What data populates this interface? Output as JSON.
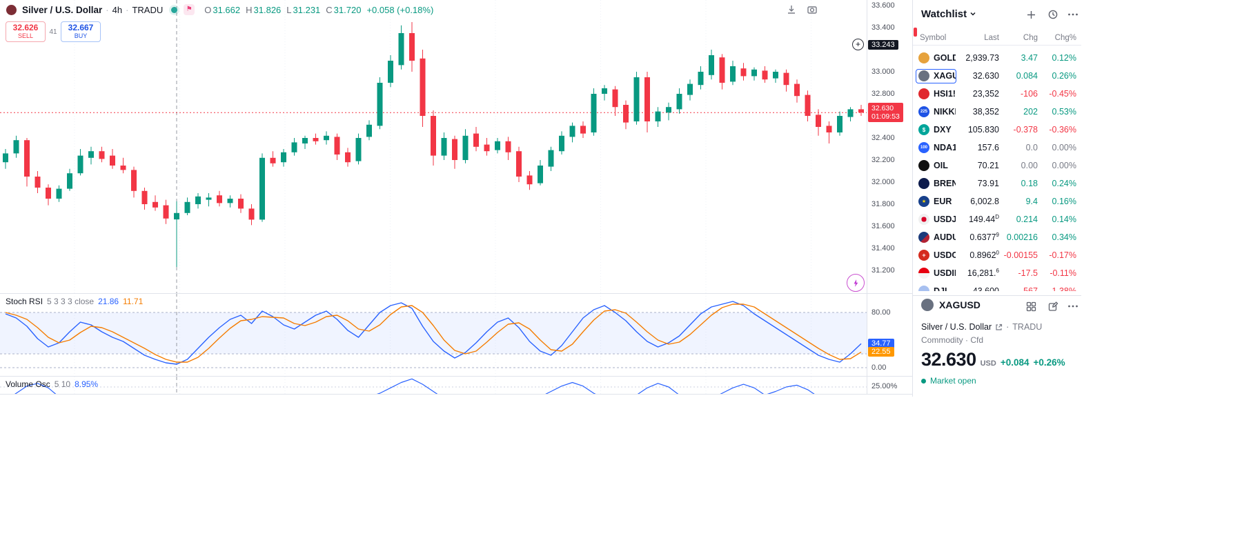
{
  "colors": {
    "up": "#089981",
    "down": "#f23645",
    "blue": "#2962ff",
    "orange": "#f57c00",
    "black_badge": "#131722",
    "red_badge": "#f23645",
    "orange_badge": "#ff9800"
  },
  "header": {
    "symbol": "Silver / U.S. Dollar",
    "sep": "·",
    "interval": "4h",
    "exchange": "TRADU",
    "ohlc": {
      "o_label": "O",
      "o": "31.662",
      "h_label": "H",
      "h": "31.826",
      "l_label": "L",
      "l": "31.231",
      "c_label": "C",
      "c": "31.720"
    },
    "change": "+0.058 (+0.18%)"
  },
  "trade": {
    "sell_price": "32.626",
    "sell_label": "SELL",
    "spread": "41",
    "buy_price": "32.667",
    "buy_label": "BUY"
  },
  "chart_data": [
    {
      "type": "candlestick",
      "title": "Silver / U.S. Dollar",
      "interval": "4h",
      "exchange": "TRADU",
      "ylim": [
        31.1,
        33.65
      ],
      "y_ticks": [
        "33.600",
        "33.400",
        "33.000",
        "32.800",
        "32.400",
        "32.200",
        "32.000",
        "31.800",
        "31.600",
        "31.400",
        "31.200"
      ],
      "alert_price": "33.243",
      "last_price": "32.630",
      "countdown": "01:09:53",
      "crosshair_index": 16,
      "candles": [
        [
          32.18,
          32.3,
          32.12,
          32.26
        ],
        [
          32.26,
          32.42,
          32.22,
          32.38
        ],
        [
          32.38,
          32.4,
          31.96,
          32.05
        ],
        [
          32.05,
          32.1,
          31.9,
          31.95
        ],
        [
          31.95,
          31.98,
          31.79,
          31.85
        ],
        [
          31.85,
          31.97,
          31.82,
          31.94
        ],
        [
          31.94,
          32.12,
          31.92,
          32.08
        ],
        [
          32.08,
          32.3,
          32.06,
          32.24
        ],
        [
          32.22,
          32.32,
          32.16,
          32.28
        ],
        [
          32.28,
          32.32,
          32.18,
          32.21
        ],
        [
          32.24,
          32.3,
          32.12,
          32.15
        ],
        [
          32.15,
          32.22,
          32.08,
          32.11
        ],
        [
          32.11,
          32.14,
          31.86,
          31.92
        ],
        [
          31.92,
          31.95,
          31.75,
          31.8
        ],
        [
          31.82,
          31.88,
          31.74,
          31.77
        ],
        [
          31.79,
          31.84,
          31.62,
          31.67
        ],
        [
          31.662,
          31.826,
          31.231,
          31.72
        ],
        [
          31.72,
          31.86,
          31.7,
          31.82
        ],
        [
          31.8,
          31.9,
          31.76,
          31.87
        ],
        [
          31.84,
          31.9,
          31.78,
          31.86
        ],
        [
          31.88,
          31.92,
          31.78,
          31.81
        ],
        [
          31.81,
          31.88,
          31.77,
          31.85
        ],
        [
          31.85,
          31.89,
          31.72,
          31.76
        ],
        [
          31.76,
          31.8,
          31.61,
          31.66
        ],
        [
          31.66,
          32.26,
          31.64,
          32.22
        ],
        [
          32.22,
          32.28,
          32.14,
          32.17
        ],
        [
          32.18,
          32.3,
          32.14,
          32.27
        ],
        [
          32.27,
          32.4,
          32.24,
          32.36
        ],
        [
          32.35,
          32.42,
          32.3,
          32.4
        ],
        [
          32.4,
          32.44,
          32.34,
          32.37
        ],
        [
          32.38,
          32.46,
          32.34,
          32.42
        ],
        [
          32.41,
          32.44,
          32.2,
          32.25
        ],
        [
          32.27,
          32.31,
          32.14,
          32.18
        ],
        [
          32.19,
          32.44,
          32.16,
          32.4
        ],
        [
          32.41,
          32.56,
          32.38,
          32.52
        ],
        [
          32.51,
          32.95,
          32.48,
          32.9
        ],
        [
          32.9,
          33.15,
          32.86,
          33.1
        ],
        [
          33.06,
          33.42,
          33.02,
          33.35
        ],
        [
          33.35,
          33.45,
          33.0,
          33.1
        ],
        [
          33.12,
          33.2,
          32.5,
          32.6
        ],
        [
          32.6,
          32.65,
          32.15,
          32.24
        ],
        [
          32.24,
          32.45,
          32.2,
          32.4
        ],
        [
          32.39,
          32.42,
          32.12,
          32.2
        ],
        [
          32.2,
          32.48,
          32.17,
          32.42
        ],
        [
          32.44,
          32.5,
          32.28,
          32.32
        ],
        [
          32.34,
          32.4,
          32.24,
          32.28
        ],
        [
          32.29,
          32.4,
          32.26,
          32.37
        ],
        [
          32.37,
          32.41,
          32.2,
          32.27
        ],
        [
          32.28,
          32.32,
          32.0,
          32.05
        ],
        [
          32.06,
          32.1,
          31.93,
          31.98
        ],
        [
          31.99,
          32.2,
          31.97,
          32.15
        ],
        [
          32.14,
          32.32,
          32.1,
          32.29
        ],
        [
          32.28,
          32.46,
          32.25,
          32.42
        ],
        [
          32.41,
          32.54,
          32.36,
          32.51
        ],
        [
          32.51,
          32.55,
          32.4,
          32.44
        ],
        [
          32.45,
          32.85,
          32.42,
          32.8
        ],
        [
          32.8,
          32.88,
          32.74,
          32.85
        ],
        [
          32.84,
          32.87,
          32.6,
          32.68
        ],
        [
          32.7,
          32.74,
          32.48,
          32.54
        ],
        [
          32.55,
          33.0,
          32.52,
          32.95
        ],
        [
          32.95,
          33.0,
          32.45,
          32.55
        ],
        [
          32.55,
          32.68,
          32.5,
          32.64
        ],
        [
          32.63,
          32.72,
          32.56,
          32.68
        ],
        [
          32.66,
          32.85,
          32.62,
          32.8
        ],
        [
          32.79,
          32.93,
          32.74,
          32.89
        ],
        [
          32.88,
          33.05,
          32.84,
          33.0
        ],
        [
          32.97,
          33.2,
          32.93,
          33.15
        ],
        [
          33.13,
          33.16,
          32.84,
          32.9
        ],
        [
          32.91,
          33.1,
          32.88,
          33.05
        ],
        [
          33.03,
          33.08,
          32.92,
          32.96
        ],
        [
          32.96,
          33.04,
          32.92,
          33.02
        ],
        [
          33.01,
          33.05,
          32.9,
          32.93
        ],
        [
          32.94,
          33.02,
          32.9,
          33.0
        ],
        [
          32.99,
          33.02,
          32.82,
          32.88
        ],
        [
          32.89,
          32.93,
          32.72,
          32.78
        ],
        [
          32.79,
          32.83,
          32.55,
          32.6
        ],
        [
          32.61,
          32.66,
          32.42,
          32.5
        ],
        [
          32.51,
          32.55,
          32.35,
          32.45
        ],
        [
          32.45,
          32.64,
          32.42,
          32.6
        ],
        [
          32.59,
          32.68,
          32.55,
          32.66
        ],
        [
          32.66,
          32.7,
          32.6,
          32.63
        ]
      ]
    },
    {
      "type": "line",
      "title": "Stoch RSI",
      "params": "5 3 3 3 close",
      "legend_values": [
        "21.86",
        "11.71"
      ],
      "levels": [
        80,
        20,
        0
      ],
      "band": [
        20,
        80
      ],
      "y_ticks": [
        "80.00",
        "0.00"
      ],
      "series": [
        {
          "name": "%K",
          "color": "#2962ff",
          "last_label": "34.77",
          "last_value": 34.77,
          "values": [
            78,
            72,
            60,
            42,
            30,
            36,
            52,
            66,
            62,
            52,
            44,
            38,
            28,
            18,
            12,
            7,
            5,
            12,
            28,
            44,
            58,
            70,
            76,
            64,
            82,
            74,
            62,
            56,
            66,
            76,
            82,
            70,
            54,
            44,
            62,
            80,
            90,
            94,
            86,
            60,
            38,
            24,
            14,
            22,
            36,
            52,
            66,
            72,
            58,
            38,
            24,
            18,
            32,
            52,
            72,
            84,
            90,
            80,
            68,
            52,
            38,
            30,
            36,
            46,
            62,
            78,
            88,
            92,
            96,
            90,
            78,
            68,
            58,
            48,
            38,
            28,
            18,
            12,
            8,
            20,
            34.77
          ]
        },
        {
          "name": "%D",
          "color": "#f57c00",
          "last_label": "22.55",
          "last_value": 22.55,
          "values": [
            80,
            76,
            70,
            58,
            44,
            36,
            40,
            51,
            60,
            58,
            52,
            44,
            36,
            28,
            19,
            12,
            8,
            8,
            15,
            28,
            43,
            57,
            68,
            70,
            74,
            73,
            72,
            64,
            61,
            66,
            74,
            76,
            68,
            56,
            53,
            62,
            77,
            88,
            90,
            80,
            61,
            40,
            25,
            20,
            24,
            37,
            51,
            63,
            65,
            56,
            40,
            26,
            24,
            34,
            52,
            69,
            82,
            84,
            79,
            66,
            52,
            40,
            34,
            37,
            48,
            62,
            76,
            87,
            92,
            92,
            88,
            78,
            68,
            58,
            48,
            38,
            28,
            19,
            12,
            13,
            22.55
          ]
        }
      ]
    },
    {
      "type": "line",
      "title": "Volume Osc",
      "params": "5 10",
      "legend_values": [
        "8.95%"
      ],
      "y_ticks": [
        "25.00%"
      ],
      "series": [
        {
          "name": "osc",
          "color": "#2962ff",
          "values": [
            10,
            18,
            26,
            29,
            24,
            14,
            8,
            6,
            8,
            10,
            8,
            6,
            8,
            10,
            12,
            10,
            8,
            12,
            14,
            10,
            8,
            6,
            8,
            12,
            16,
            12,
            8,
            6,
            8,
            10,
            12,
            10,
            8,
            10,
            14,
            18,
            24,
            30,
            34,
            28,
            20,
            12,
            8,
            6,
            8,
            10,
            12,
            10,
            8,
            10,
            14,
            20,
            26,
            30,
            26,
            18,
            12,
            8,
            10,
            16,
            24,
            29,
            25,
            16,
            10,
            8,
            12,
            18,
            24,
            28,
            24,
            16,
            20,
            25,
            27,
            22,
            14,
            10,
            8,
            12,
            16
          ]
        }
      ]
    }
  ],
  "watchlist": {
    "title": "Watchlist",
    "columns": [
      "Symbol",
      "Last",
      "Chg",
      "Chg%"
    ],
    "rows": [
      {
        "symbol": "GOLD",
        "last": "2,939.73",
        "chg": "3.47",
        "chgp": "0.12%",
        "dir": "up",
        "icon": {
          "bg": "#e6a23c"
        }
      },
      {
        "symbol": "XAGUSD",
        "last": "32.630",
        "chg": "0.084",
        "chgp": "0.26%",
        "dir": "up",
        "selected": true,
        "icon": {
          "bg": "#697180"
        }
      },
      {
        "symbol": "HSI1!",
        "sup": "D",
        "last": "23,352",
        "chg": "-106",
        "chgp": "-0.45%",
        "dir": "down",
        "icon": {
          "bg": "#e0282e"
        }
      },
      {
        "symbol": "NIKKEI",
        "last": "38,352",
        "chg": "202",
        "chgp": "0.53%",
        "dir": "up",
        "icon": {
          "bg": "#1e53e5",
          "text": "225"
        }
      },
      {
        "symbol": "DXY",
        "last": "105.830",
        "chg": "-0.378",
        "chgp": "-0.36%",
        "dir": "down",
        "icon": {
          "bg": "#00a59a",
          "text": "$",
          "fs": 8
        }
      },
      {
        "symbol": "NDA1",
        "sup": "D",
        "last": "157.6",
        "chg": "0.0",
        "chgp": "0.00%",
        "dir": "flat",
        "icon": {
          "bg": "#2962ff",
          "text": "100"
        }
      },
      {
        "symbol": "OIL",
        "last": "70.21",
        "chg": "0.00",
        "chgp": "0.00%",
        "dir": "flat",
        "icon": {
          "bg": "#111111"
        }
      },
      {
        "symbol": "BRENT",
        "last": "73.91",
        "chg": "0.18",
        "chgp": "0.24%",
        "dir": "up",
        "icon": {
          "bg": "#0d1b4c"
        }
      },
      {
        "symbol": "EUR",
        "sup": "D",
        "dot": true,
        "last": "6,002.8",
        "chg": "9.4",
        "chgp": "0.16%",
        "dir": "up",
        "icon": {
          "bg": "#17408b",
          "text": "★",
          "fg": "#ffd700",
          "fs": 7
        }
      },
      {
        "symbol": "USDJPY",
        "last": "149.44",
        "last_sup": "D",
        "chg": "0.214",
        "chgp": "0.14%",
        "dir": "up",
        "icon": {
          "bg": "radial-gradient(circle at 50% 50%, #d80027 0 32%, #f0f0f0 33%)"
        }
      },
      {
        "symbol": "AUDUSD",
        "last": "0.6377",
        "last_sup": "9",
        "chg": "0.00216",
        "chgp": "0.34%",
        "dir": "up",
        "icon": {
          "bg": "linear-gradient(135deg,#1b3a7a 55%,#b22234 55%)"
        }
      },
      {
        "symbol": "USDCHF",
        "last": "0.8962",
        "last_sup": "0",
        "chg": "-0.00155",
        "chgp": "-0.17%",
        "dir": "down",
        "icon": {
          "bg": "#d52b1e",
          "text": "+",
          "fs": 9
        }
      },
      {
        "symbol": "USDIDR",
        "last": "16,281.",
        "last_sup": "6",
        "chg": "-17.5",
        "chgp": "-0.11%",
        "dir": "down",
        "icon": {
          "bg": "linear-gradient(180deg,#e70011 50%,#f5f5f5 50%)"
        }
      },
      {
        "symbol": "DJI",
        "last": "43,600",
        "chg": "-567",
        "chgp": "-1.38%",
        "dir": "down",
        "icon": {
          "bg": "#a7c0f0"
        }
      }
    ]
  },
  "detail": {
    "symbol": "XAGUSD",
    "name": "Silver / U.S. Dollar",
    "sep": "·",
    "exchange": "TRADU",
    "type_line": "Commodity · Cfd",
    "price": "32.630",
    "currency": "USD",
    "change": "+0.084",
    "changep": "+0.26%",
    "market_status": "Market open"
  }
}
